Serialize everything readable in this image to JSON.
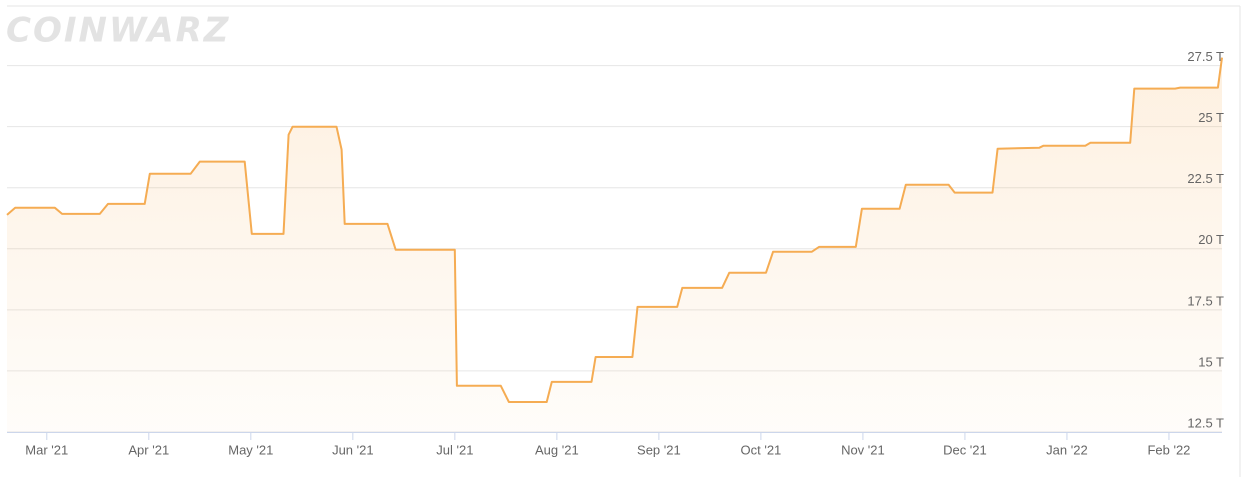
{
  "chart_data": {
    "type": "line",
    "watermark": "COINWARZ",
    "xlim": [
      -0.39,
      11.52
    ],
    "xticks": [
      {
        "value": 0,
        "label": "Mar '21"
      },
      {
        "value": 1,
        "label": "Apr '21"
      },
      {
        "value": 2,
        "label": "May '21"
      },
      {
        "value": 3,
        "label": "Jun '21"
      },
      {
        "value": 4,
        "label": "Jul '21"
      },
      {
        "value": 5,
        "label": "Aug '21"
      },
      {
        "value": 6,
        "label": "Sep '21"
      },
      {
        "value": 7,
        "label": "Oct '21"
      },
      {
        "value": 8,
        "label": "Nov '21"
      },
      {
        "value": 9,
        "label": "Dec '21"
      },
      {
        "value": 10,
        "label": "Jan '22"
      },
      {
        "value": 11,
        "label": "Feb '22"
      }
    ],
    "ylim": [
      12.5,
      29.9
    ],
    "yticks": [
      {
        "value": 12.5,
        "label": "12.5 T"
      },
      {
        "value": 15,
        "label": "15 T"
      },
      {
        "value": 17.5,
        "label": "17.5 T"
      },
      {
        "value": 20,
        "label": "20 T"
      },
      {
        "value": 22.5,
        "label": "22.5 T"
      },
      {
        "value": 25,
        "label": "25 T"
      },
      {
        "value": 27.5,
        "label": "27.5 T"
      }
    ],
    "grid": true,
    "series": [
      {
        "color": "#f5ac53",
        "x": [
          -0.39,
          -0.31,
          0.08,
          0.15,
          0.52,
          0.6,
          0.96,
          1.01,
          1.41,
          1.5,
          1.94,
          2.01,
          2.32,
          2.37,
          2.41,
          2.84,
          2.89,
          2.92,
          3.34,
          3.42,
          4.0,
          4.02,
          4.45,
          4.53,
          4.9,
          4.95,
          5.34,
          5.38,
          5.74,
          5.79,
          6.18,
          6.23,
          6.62,
          6.69,
          7.05,
          7.12,
          7.5,
          7.57,
          7.93,
          7.99,
          8.36,
          8.42,
          8.84,
          8.9,
          9.27,
          9.32,
          9.73,
          9.77,
          10.18,
          10.23,
          10.62,
          10.66,
          11.06,
          11.11,
          11.48,
          11.52
        ],
        "values": [
          21.39,
          21.68,
          21.68,
          21.43,
          21.43,
          21.84,
          21.84,
          23.07,
          23.07,
          23.57,
          23.57,
          20.61,
          20.61,
          24.67,
          25.0,
          25.0,
          24.06,
          21.02,
          21.02,
          19.96,
          19.96,
          14.39,
          14.39,
          13.73,
          13.73,
          14.55,
          14.55,
          15.57,
          15.57,
          17.62,
          17.62,
          18.4,
          18.4,
          19.02,
          19.02,
          19.88,
          19.88,
          20.08,
          20.08,
          21.64,
          21.64,
          22.62,
          22.62,
          22.3,
          22.3,
          24.1,
          24.14,
          24.22,
          24.22,
          24.34,
          24.34,
          26.56,
          26.56,
          26.6,
          26.6,
          27.83
        ]
      }
    ]
  }
}
